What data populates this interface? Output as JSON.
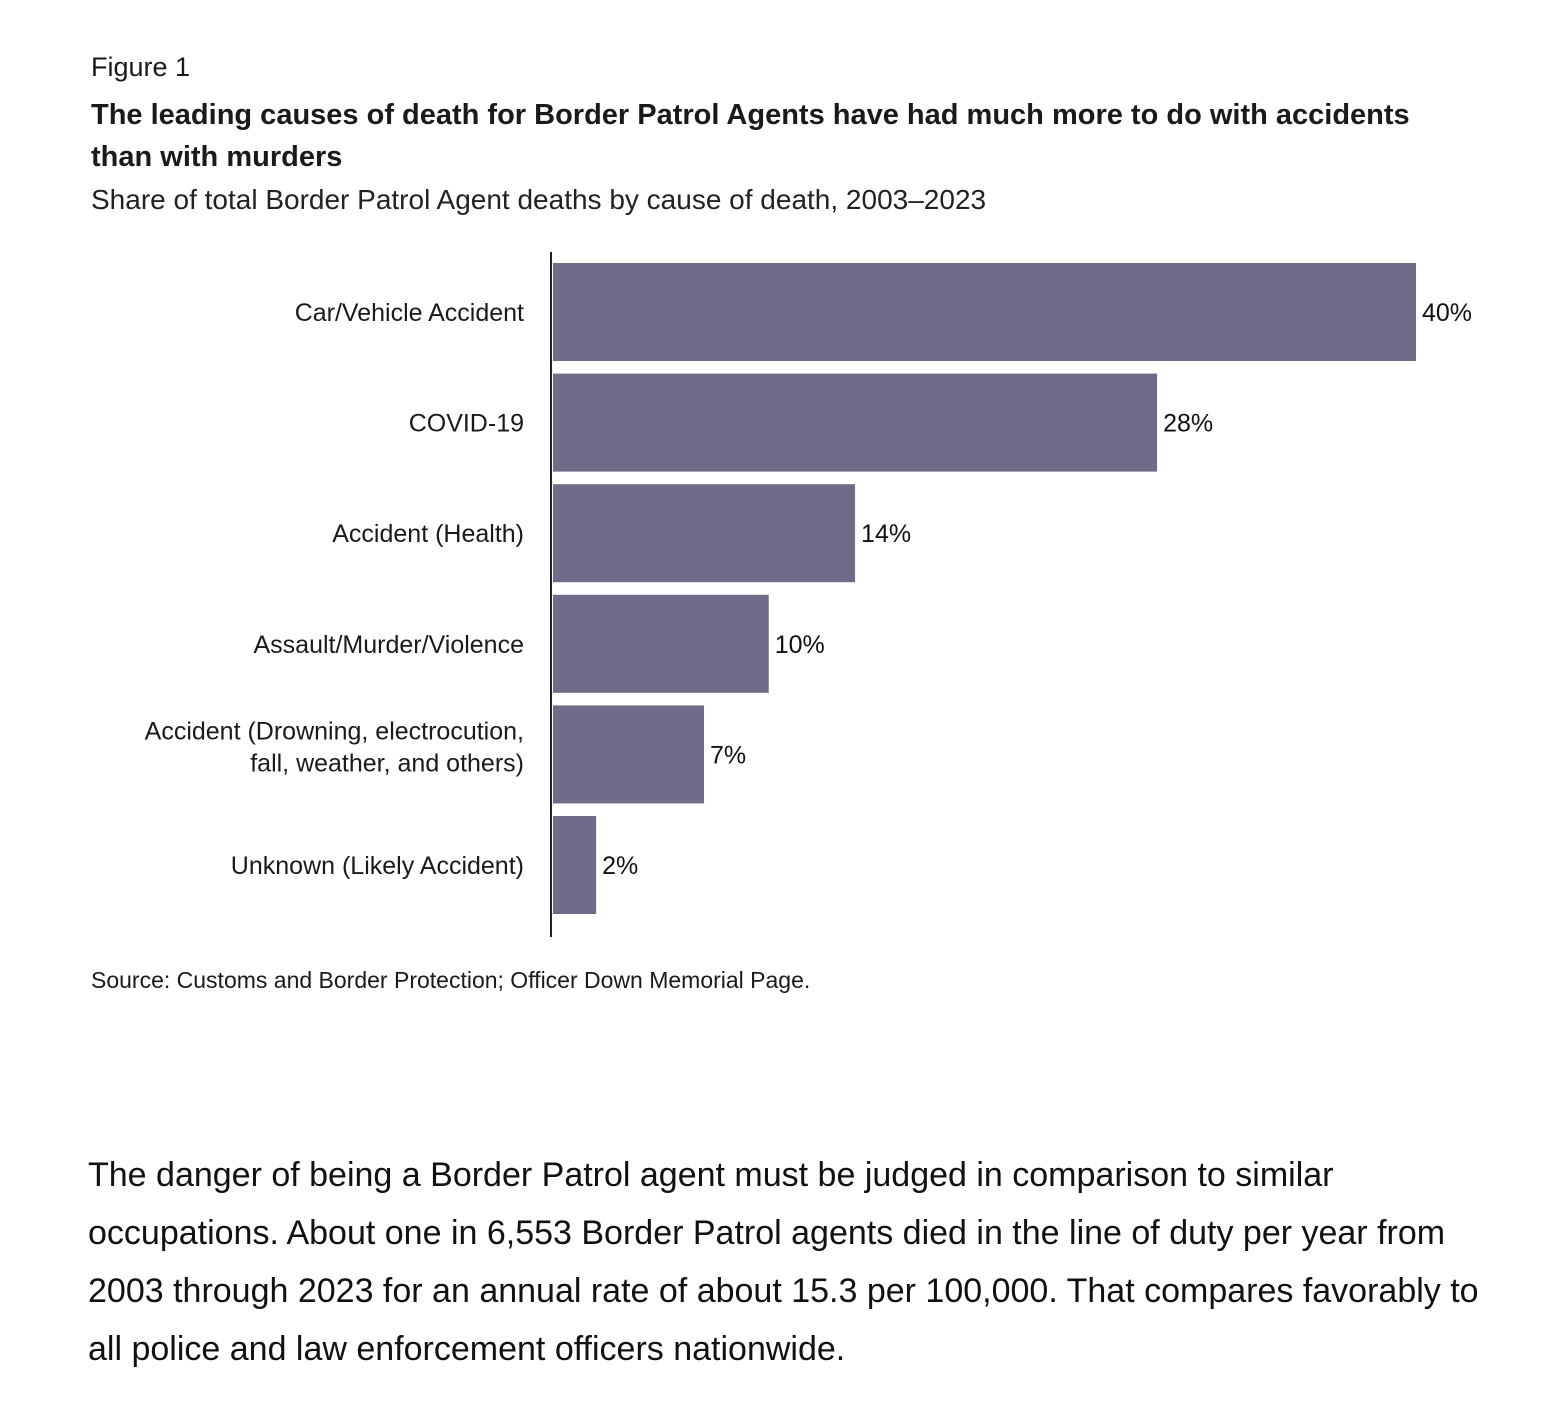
{
  "figure_label": "Figure 1",
  "chart_data": {
    "type": "bar",
    "orientation": "horizontal",
    "title": "The leading causes of death for Border Patrol Agents have had much more to do with accidents than with murders",
    "subtitle": "Share of total Border Patrol Agent deaths by cause of death, 2003–2023",
    "categories": [
      [
        "Car/Vehicle Accident"
      ],
      [
        "COVID-19"
      ],
      [
        "Accident (Health)"
      ],
      [
        "Assault/Murder/Violence"
      ],
      [
        "Accident (Drowning, electrocution,",
        "fall, weather, and others)"
      ],
      [
        "Unknown (Likely Accident)"
      ]
    ],
    "values": [
      40,
      28,
      14,
      10,
      7,
      2
    ],
    "value_labels": [
      "40%",
      "28%",
      "14%",
      "10%",
      "7%",
      "2%"
    ],
    "xlabel": "",
    "ylabel": "",
    "xlim": [
      0,
      40
    ],
    "grid": false,
    "color": "#716a88",
    "source": "Source: Customs and Border Protection; Officer Down Memorial Page."
  },
  "body_text": "The danger of being a Border Patrol agent must be judged in comparison to similar occupations. About one in 6,553 Border Patrol agents died in the line of duty per year from 2003 through 2023 for an annual rate of about 15.3 per 100,000. That compares favorably to all police and law enforcement officers nationwide."
}
